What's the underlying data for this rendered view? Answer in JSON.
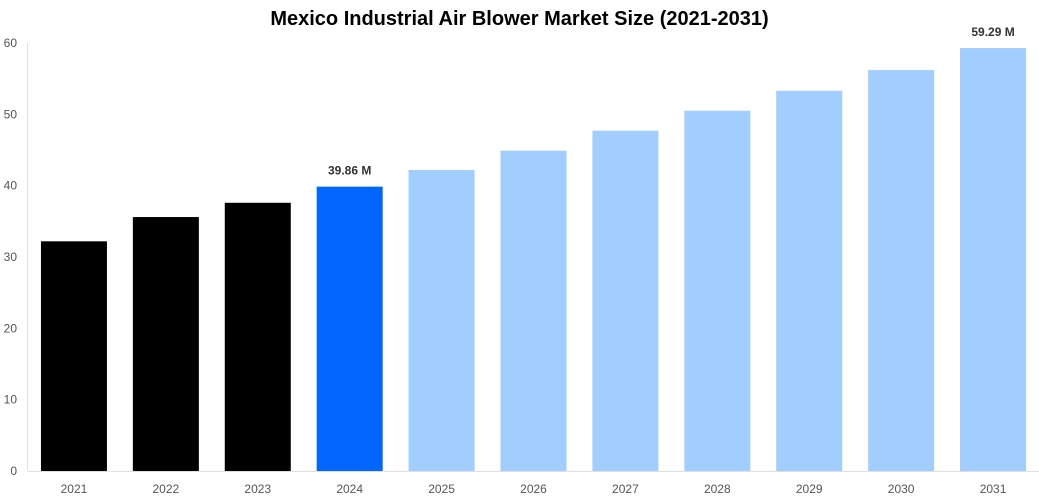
{
  "chart_data": {
    "type": "bar",
    "title": "Mexico Industrial Air Blower Market Size (2021-2031)",
    "xlabel": "",
    "ylabel": "",
    "ylim": [
      0,
      60
    ],
    "yticks": [
      0,
      10,
      20,
      30,
      40,
      50,
      60
    ],
    "grid": false,
    "categories": [
      "2021",
      "2022",
      "2023",
      "2024",
      "2025",
      "2026",
      "2027",
      "2028",
      "2029",
      "2030",
      "2031"
    ],
    "values": [
      32.2,
      35.6,
      37.6,
      39.86,
      42.2,
      44.9,
      47.7,
      50.5,
      53.3,
      56.2,
      59.29
    ],
    "bar_colors": [
      "#000000",
      "#000000",
      "#000000",
      "#0066ff",
      "#a1cdff",
      "#a1cdff",
      "#a1cdff",
      "#a1cdff",
      "#a1cdff",
      "#a1cdff",
      "#a1cdff"
    ],
    "data_labels": {
      "3": "39.86 M",
      "10": "59.29 M"
    }
  }
}
